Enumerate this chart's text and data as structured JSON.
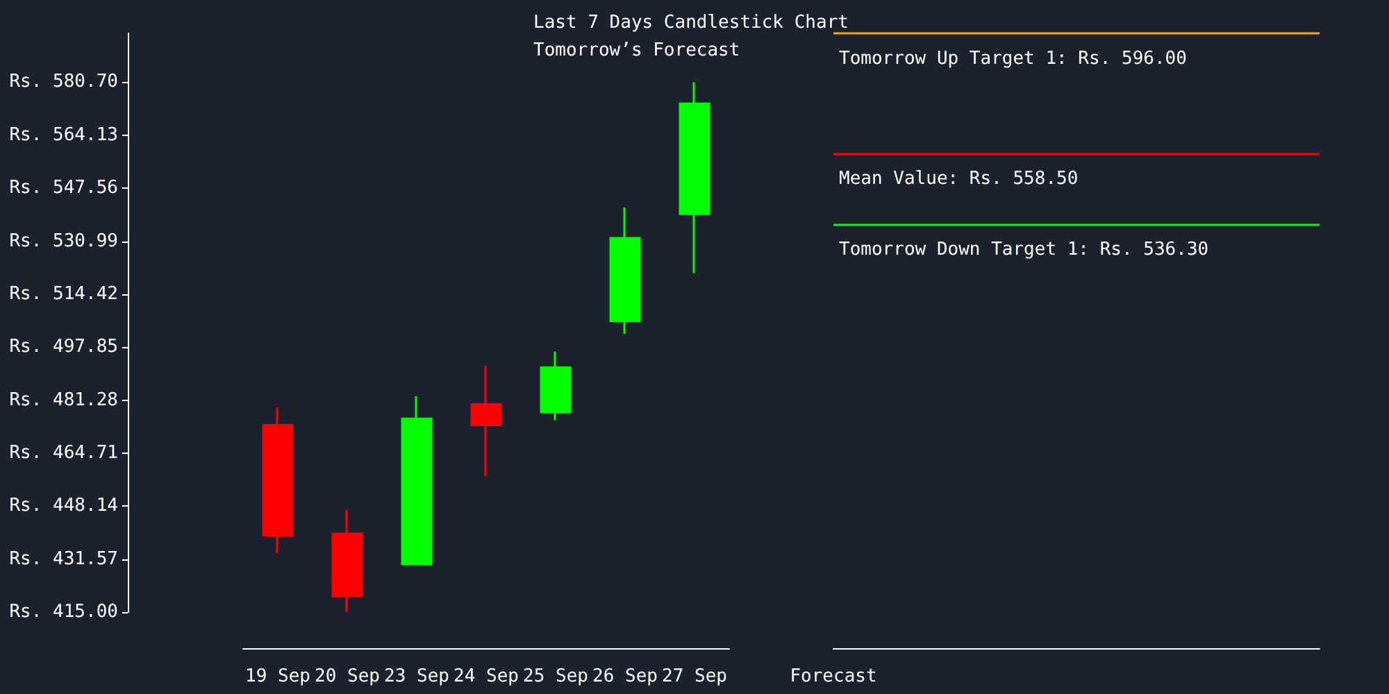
{
  "chart_data": {
    "type": "candlestick",
    "title": "Last 7 Days Candlestick Chart",
    "subtitle": "Tomorrow’s Forecast",
    "categories": [
      "19 Sep",
      "20 Sep",
      "23 Sep",
      "24 Sep",
      "25 Sep",
      "26 Sep",
      "27 Sep",
      "Forecast"
    ],
    "ohlc": [
      [
        473.5,
        479,
        433.5,
        439
      ],
      [
        439.5,
        447,
        415,
        420
      ],
      [
        430,
        482.5,
        430,
        475.5
      ],
      [
        480,
        492,
        457.5,
        473.5
      ],
      [
        477.5,
        496.5,
        475,
        491.5
      ],
      [
        506,
        541.5,
        502,
        532
      ],
      [
        539.5,
        580.7,
        521,
        574
      ],
      null
    ],
    "colors": [
      "#ff0000",
      "#ff0000",
      "#00ff00",
      "#ff0000",
      "#00ff00",
      "#00ff00",
      "#00ff00",
      null
    ],
    "ylim": [
      415,
      596
    ],
    "yticks": [
      {
        "value": 415,
        "label": "Rs. 415.00"
      },
      {
        "value": 431.57,
        "label": "Rs. 431.57"
      },
      {
        "value": 448.14,
        "label": "Rs. 448.14"
      },
      {
        "value": 464.71,
        "label": "Rs. 464.71"
      },
      {
        "value": 481.28,
        "label": "Rs. 481.28"
      },
      {
        "value": 497.85,
        "label": "Rs. 497.85"
      },
      {
        "value": 514.42,
        "label": "Rs. 514.42"
      },
      {
        "value": 530.99,
        "label": "Rs. 530.99"
      },
      {
        "value": 547.56,
        "label": "Rs. 547.56"
      },
      {
        "value": 564.13,
        "label": "Rs. 564.13"
      },
      {
        "value": 580.7,
        "label": "Rs. 580.70"
      }
    ],
    "ref_lines": [
      {
        "axis": "y",
        "value": 596,
        "label": "Tomorrow Up Target 1: Rs. 596.00",
        "color": "#ffa500"
      },
      {
        "axis": "y",
        "value": 558.5,
        "label": "Mean Value: Rs. 558.50",
        "color": "#ff0000"
      },
      {
        "axis": "y",
        "value": 536.3,
        "label": "Tomorrow Down Target 1: Rs. 536.30",
        "color": "#00ff00"
      }
    ]
  }
}
